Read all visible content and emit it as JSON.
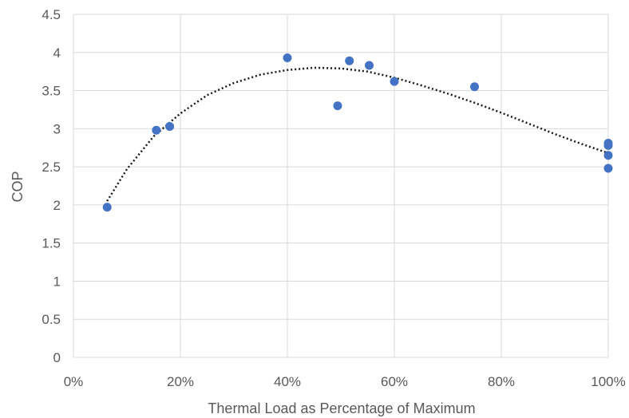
{
  "chart_data": {
    "type": "scatter",
    "title": "",
    "xlabel": "Thermal Load as Percentage of Maximum",
    "ylabel": "COP",
    "xlim": [
      0,
      1
    ],
    "ylim": [
      0,
      4.5
    ],
    "x_ticks": [
      0,
      0.2,
      0.4,
      0.6,
      0.8,
      1.0
    ],
    "x_tick_labels": [
      "0%",
      "20%",
      "40%",
      "60%",
      "80%",
      "100%"
    ],
    "y_ticks": [
      0,
      0.5,
      1,
      1.5,
      2,
      2.5,
      3,
      3.5,
      4,
      4.5
    ],
    "y_tick_labels": [
      "0",
      "0.5",
      "1",
      "1.5",
      "2",
      "2.5",
      "3",
      "3.5",
      "4",
      "4.5"
    ],
    "grid": true,
    "series": [
      {
        "color": "#4472c4",
        "points": [
          {
            "x": 0.063,
            "y": 1.97
          },
          {
            "x": 0.155,
            "y": 2.98
          },
          {
            "x": 0.18,
            "y": 3.03
          },
          {
            "x": 0.4,
            "y": 3.93
          },
          {
            "x": 0.494,
            "y": 3.3
          },
          {
            "x": 0.516,
            "y": 3.89
          },
          {
            "x": 0.553,
            "y": 3.83
          },
          {
            "x": 0.6,
            "y": 3.62
          },
          {
            "x": 0.75,
            "y": 3.55
          },
          {
            "x": 1.0,
            "y": 2.81
          },
          {
            "x": 1.0,
            "y": 2.78
          },
          {
            "x": 1.0,
            "y": 2.65
          },
          {
            "x": 1.0,
            "y": 2.48
          }
        ]
      }
    ],
    "trendline": {
      "style": "dotted",
      "color": "#1a1a1a",
      "points": [
        {
          "x": 0.063,
          "y": 2.05
        },
        {
          "x": 0.1,
          "y": 2.47
        },
        {
          "x": 0.15,
          "y": 2.9
        },
        {
          "x": 0.2,
          "y": 3.2
        },
        {
          "x": 0.25,
          "y": 3.44
        },
        {
          "x": 0.3,
          "y": 3.6
        },
        {
          "x": 0.35,
          "y": 3.71
        },
        {
          "x": 0.4,
          "y": 3.77
        },
        {
          "x": 0.45,
          "y": 3.8
        },
        {
          "x": 0.5,
          "y": 3.79
        },
        {
          "x": 0.55,
          "y": 3.75
        },
        {
          "x": 0.6,
          "y": 3.67
        },
        {
          "x": 0.65,
          "y": 3.57
        },
        {
          "x": 0.7,
          "y": 3.46
        },
        {
          "x": 0.75,
          "y": 3.34
        },
        {
          "x": 0.8,
          "y": 3.21
        },
        {
          "x": 0.85,
          "y": 3.07
        },
        {
          "x": 0.9,
          "y": 2.93
        },
        {
          "x": 0.95,
          "y": 2.8
        },
        {
          "x": 1.0,
          "y": 2.68
        }
      ]
    }
  }
}
